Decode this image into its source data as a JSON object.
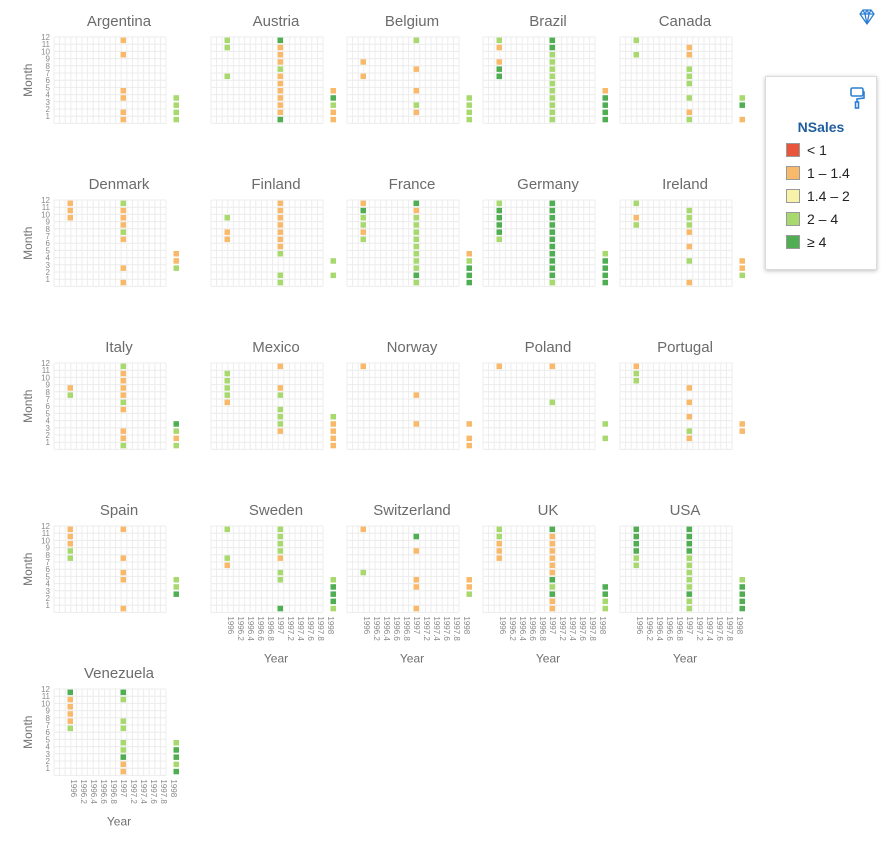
{
  "chart_data": {
    "type": "heatmap",
    "xlabel": "Year",
    "ylabel": "Month",
    "x_ticks": [
      "1996",
      "1996.2",
      "1996.4",
      "1996.6",
      "1996.8",
      "1997",
      "1997.2",
      "1997.4",
      "1997.6",
      "1997.8",
      "1998"
    ],
    "y_ticks": [
      "1",
      "2",
      "3",
      "4",
      "5",
      "6",
      "7",
      "8",
      "9",
      "10",
      "11",
      "12"
    ],
    "xlim": [
      1996,
      1998
    ],
    "ylim": [
      1,
      12
    ],
    "legend": {
      "title": "NSales",
      "position": "right",
      "items": [
        {
          "label": "< 1",
          "color": "#e8553a"
        },
        {
          "label": "1 – 1.4",
          "color": "#f8b96b"
        },
        {
          "label": "1.4 – 2",
          "color": "#f7f2a8"
        },
        {
          "label": "2 – 4",
          "color": "#a8d96e"
        },
        {
          "label": "≥ 4",
          "color": "#4fae52"
        }
      ]
    },
    "color_key": {
      "b": "1 – 1.4",
      "l": "2 – 4",
      "g": "≥ 4"
    },
    "panels": [
      {
        "country": "Argentina",
        "cells": {
          "1997": {
            "1": "b",
            "2": "b",
            "4": "b",
            "5": "b",
            "10": "b",
            "12": "b"
          },
          "1998": {
            "1": "l",
            "2": "l",
            "3": "l",
            "4": "l"
          }
        }
      },
      {
        "country": "Austria",
        "cells": {
          "1996": {
            "7": "l",
            "11": "l",
            "12": "l"
          },
          "1997": {
            "1": "g",
            "2": "b",
            "3": "b",
            "4": "b",
            "5": "b",
            "6": "b",
            "7": "b",
            "8": "l",
            "9": "b",
            "10": "b",
            "11": "b",
            "12": "g"
          },
          "1998": {
            "1": "b",
            "2": "b",
            "3": "l",
            "4": "g",
            "5": "b"
          }
        }
      },
      {
        "country": "Belgium",
        "cells": {
          "1996": {
            "7": "b",
            "9": "b"
          },
          "1997": {
            "2": "b",
            "3": "l",
            "5": "b",
            "8": "b",
            "12": "l"
          },
          "1998": {
            "1": "l",
            "2": "l",
            "3": "l",
            "4": "l"
          }
        }
      },
      {
        "country": "Brazil",
        "cells": {
          "1996": {
            "7": "g",
            "8": "g",
            "9": "b",
            "11": "b",
            "12": "l"
          },
          "1997": {
            "1": "l",
            "2": "l",
            "3": "l",
            "4": "l",
            "5": "l",
            "6": "l",
            "7": "l",
            "8": "l",
            "9": "l",
            "10": "l",
            "11": "g",
            "12": "g"
          },
          "1998": {
            "1": "g",
            "2": "g",
            "3": "g",
            "4": "g",
            "5": "b"
          }
        }
      },
      {
        "country": "Canada",
        "cells": {
          "1996": {
            "10": "l",
            "12": "l"
          },
          "1997": {
            "1": "l",
            "2": "b",
            "4": "l",
            "6": "l",
            "7": "l",
            "8": "l",
            "10": "b",
            "11": "b"
          },
          "1998": {
            "1": "b",
            "3": "g",
            "4": "l"
          }
        }
      },
      {
        "country": "Denmark",
        "cells": {
          "1996": {
            "10": "b",
            "11": "b",
            "12": "b"
          },
          "1997": {
            "1": "b",
            "3": "b",
            "7": "b",
            "8": "l",
            "9": "b",
            "10": "b",
            "11": "b",
            "12": "l"
          },
          "1998": {
            "3": "l",
            "4": "b",
            "5": "b"
          }
        }
      },
      {
        "country": "Finland",
        "cells": {
          "1996": {
            "7": "b",
            "8": "b",
            "10": "l"
          },
          "1997": {
            "1": "l",
            "2": "l",
            "5": "l",
            "6": "b",
            "7": "b",
            "8": "b",
            "9": "b",
            "10": "b",
            "11": "b",
            "12": "b"
          },
          "1998": {
            "2": "l",
            "4": "l"
          }
        }
      },
      {
        "country": "France",
        "cells": {
          "1996": {
            "7": "l",
            "8": "b",
            "9": "l",
            "10": "l",
            "11": "g",
            "12": "b"
          },
          "1997": {
            "1": "l",
            "2": "g",
            "3": "l",
            "4": "l",
            "5": "l",
            "6": "l",
            "7": "l",
            "8": "l",
            "9": "l",
            "10": "l",
            "11": "b",
            "12": "g"
          },
          "1998": {
            "1": "g",
            "2": "g",
            "3": "g",
            "4": "l",
            "5": "b"
          }
        }
      },
      {
        "country": "Germany",
        "cells": {
          "1996": {
            "7": "l",
            "8": "g",
            "9": "g",
            "10": "g",
            "11": "g",
            "12": "l"
          },
          "1997": {
            "1": "l",
            "2": "g",
            "3": "g",
            "4": "g",
            "5": "g",
            "6": "g",
            "7": "g",
            "8": "g",
            "9": "g",
            "10": "g",
            "11": "g",
            "12": "g"
          },
          "1998": {
            "1": "g",
            "2": "g",
            "3": "g",
            "4": "g",
            "5": "l"
          }
        }
      },
      {
        "country": "Ireland",
        "cells": {
          "1996": {
            "9": "l",
            "10": "b",
            "12": "l"
          },
          "1997": {
            "1": "b",
            "4": "l",
            "6": "b",
            "8": "b",
            "9": "l",
            "10": "l",
            "11": "l"
          },
          "1998": {
            "2": "l",
            "3": "b",
            "4": "b"
          }
        }
      },
      {
        "country": "Italy",
        "cells": {
          "1996": {
            "8": "l",
            "9": "b"
          },
          "1997": {
            "1": "l",
            "2": "b",
            "3": "b",
            "6": "b",
            "7": "l",
            "8": "b",
            "9": "b",
            "10": "b",
            "11": "b",
            "12": "l"
          },
          "1998": {
            "1": "l",
            "2": "b",
            "3": "l",
            "4": "g"
          }
        }
      },
      {
        "country": "Mexico",
        "cells": {
          "1996": {
            "7": "b",
            "8": "l",
            "9": "l",
            "10": "l",
            "11": "l"
          },
          "1997": {
            "3": "b",
            "4": "l",
            "5": "l",
            "6": "l",
            "8": "l",
            "9": "b",
            "12": "b"
          },
          "1998": {
            "1": "b",
            "2": "b",
            "3": "b",
            "4": "b",
            "5": "l"
          }
        }
      },
      {
        "country": "Norway",
        "cells": {
          "1996": {
            "12": "b"
          },
          "1997": {
            "4": "b",
            "8": "b"
          },
          "1998": {
            "1": "b",
            "2": "b",
            "4": "b"
          }
        }
      },
      {
        "country": "Poland",
        "cells": {
          "1996": {
            "12": "b"
          },
          "1997": {
            "7": "l",
            "12": "b"
          },
          "1998": {
            "2": "l",
            "4": "l"
          }
        }
      },
      {
        "country": "Portugal",
        "cells": {
          "1996": {
            "10": "l",
            "11": "l",
            "12": "b"
          },
          "1997": {
            "2": "b",
            "3": "l",
            "5": "b",
            "7": "b",
            "9": "b"
          },
          "1998": {
            "3": "b",
            "4": "b"
          }
        }
      },
      {
        "country": "Spain",
        "cells": {
          "1996": {
            "8": "l",
            "9": "l",
            "10": "b",
            "11": "b",
            "12": "b"
          },
          "1997": {
            "1": "b",
            "5": "b",
            "6": "b",
            "8": "b",
            "12": "b"
          },
          "1998": {
            "3": "g",
            "4": "l",
            "5": "l"
          }
        }
      },
      {
        "country": "Sweden",
        "cells": {
          "1996": {
            "7": "b",
            "8": "l",
            "12": "l"
          },
          "1997": {
            "1": "g",
            "5": "l",
            "6": "l",
            "8": "b",
            "9": "l",
            "10": "l",
            "11": "l",
            "12": "l"
          },
          "1998": {
            "1": "l",
            "2": "g",
            "3": "g",
            "4": "g",
            "5": "l"
          }
        }
      },
      {
        "country": "Switzerland",
        "cells": {
          "1996": {
            "6": "l",
            "12": "b"
          },
          "1997": {
            "1": "b",
            "4": "b",
            "5": "b",
            "9": "b",
            "11": "g"
          },
          "1998": {
            "3": "l",
            "4": "b",
            "5": "b"
          }
        }
      },
      {
        "country": "UK",
        "cells": {
          "1996": {
            "8": "b",
            "9": "b",
            "10": "b",
            "11": "l",
            "12": "l"
          },
          "1997": {
            "1": "b",
            "2": "b",
            "3": "g",
            "4": "l",
            "5": "g",
            "6": "b",
            "7": "b",
            "8": "b",
            "9": "b",
            "10": "b",
            "11": "b",
            "12": "g"
          },
          "1998": {
            "1": "l",
            "2": "l",
            "3": "g",
            "4": "g"
          }
        }
      },
      {
        "country": "USA",
        "cells": {
          "1996": {
            "7": "l",
            "8": "l",
            "9": "g",
            "10": "g",
            "11": "g",
            "12": "g"
          },
          "1997": {
            "1": "l",
            "2": "l",
            "3": "g",
            "4": "l",
            "5": "l",
            "6": "l",
            "7": "l",
            "8": "l",
            "9": "g",
            "10": "g",
            "11": "g",
            "12": "g"
          },
          "1998": {
            "1": "g",
            "2": "g",
            "3": "g",
            "4": "g",
            "5": "l"
          }
        }
      },
      {
        "country": "Venezuela",
        "cells": {
          "1996": {
            "7": "l",
            "8": "b",
            "9": "b",
            "10": "b",
            "11": "b",
            "12": "g"
          },
          "1997": {
            "1": "b",
            "2": "b",
            "3": "g",
            "4": "l",
            "5": "l",
            "7": "l",
            "8": "l",
            "11": "l",
            "12": "g"
          },
          "1998": {
            "1": "g",
            "2": "l",
            "3": "g",
            "4": "g",
            "5": "l"
          }
        }
      }
    ]
  },
  "toolbar": {
    "format_icon": "paint-roller-icon",
    "gem_icon": "diamond-icon"
  }
}
